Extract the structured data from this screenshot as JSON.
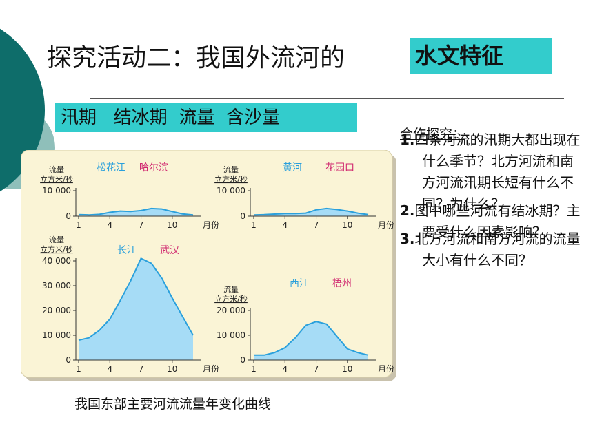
{
  "title": {
    "main": "探究活动二：我国外流河的",
    "highlight": "水文特征"
  },
  "keywords": "汛期   结冰期  流量  含沙量",
  "chart_caption": "我国东部主要河流流量年变化曲线",
  "qa": {
    "heading": "合作探究：",
    "questions": [
      {
        "num": "1.",
        "text": "四条河流的汛期大都出现在什么季节？北方河流和南方河流汛期长短有什么不同？为什么？"
      },
      {
        "num": "2.",
        "text": "图中哪些河流有结冰期？主要受什么因素影响？"
      },
      {
        "num": "3.",
        "text": "北方河流和南方河流的流量大小有什么不同？"
      }
    ]
  },
  "chart_data": [
    {
      "type": "area",
      "river": "松花江",
      "station": "哈尔滨",
      "ylabel_top": "流量",
      "ylabel_unit": "立方米/秒",
      "xlabel": "月份",
      "ylim": [
        0,
        10000
      ],
      "yticks": [
        "0",
        "10 000"
      ],
      "xticks": [
        "1",
        "4",
        "7",
        "10"
      ],
      "x": [
        1,
        2,
        3,
        4,
        5,
        6,
        7,
        8,
        9,
        10,
        11,
        12
      ],
      "values": [
        600,
        500,
        700,
        1500,
        2000,
        1800,
        2200,
        3000,
        2800,
        1800,
        900,
        500
      ]
    },
    {
      "type": "area",
      "river": "黄河",
      "station": "花园口",
      "ylabel_top": "流量",
      "ylabel_unit": "立方米/秒",
      "xlabel": "月份",
      "ylim": [
        0,
        10000
      ],
      "yticks": [
        "0",
        "10 000"
      ],
      "xticks": [
        "1",
        "4",
        "7",
        "10"
      ],
      "x": [
        1,
        2,
        3,
        4,
        5,
        6,
        7,
        8,
        9,
        10,
        11,
        12
      ],
      "values": [
        500,
        600,
        800,
        1000,
        1000,
        1200,
        2500,
        3000,
        2600,
        2000,
        1200,
        600
      ]
    },
    {
      "type": "area",
      "river": "长江",
      "station": "武汉",
      "ylabel_top": "流量",
      "ylabel_unit": "立方米/秒",
      "xlabel": "月份",
      "ylim": [
        0,
        40000
      ],
      "yticks": [
        "0",
        "10 000",
        "20 000",
        "30 000",
        "40 000"
      ],
      "xticks": [
        "1",
        "4",
        "7",
        "10"
      ],
      "x": [
        1,
        2,
        3,
        4,
        5,
        6,
        7,
        8,
        9,
        10,
        11,
        12
      ],
      "values": [
        8000,
        9000,
        12000,
        16500,
        24000,
        32000,
        41000,
        39000,
        33000,
        25000,
        17500,
        10000
      ]
    },
    {
      "type": "area",
      "river": "西江",
      "station": "梧州",
      "ylabel_top": "流量",
      "ylabel_unit": "立方米/秒",
      "xlabel": "月份",
      "ylim": [
        0,
        20000
      ],
      "yticks": [
        "0",
        "10 000",
        "20 000"
      ],
      "xticks": [
        "1",
        "4",
        "7",
        "10"
      ],
      "x": [
        1,
        2,
        3,
        4,
        5,
        6,
        7,
        8,
        9,
        10,
        11,
        12
      ],
      "values": [
        2000,
        2000,
        3000,
        5000,
        9000,
        14000,
        15500,
        14500,
        9500,
        4500,
        3000,
        2000
      ]
    }
  ],
  "colors": {
    "teal": "#33cccc",
    "dark_teal": "#0e6d6a",
    "light_teal": "#8fbfba",
    "panel": "#faf4d6",
    "fill": "#a6dcf6",
    "line": "#2aa0dc",
    "station": "#d0276f"
  }
}
